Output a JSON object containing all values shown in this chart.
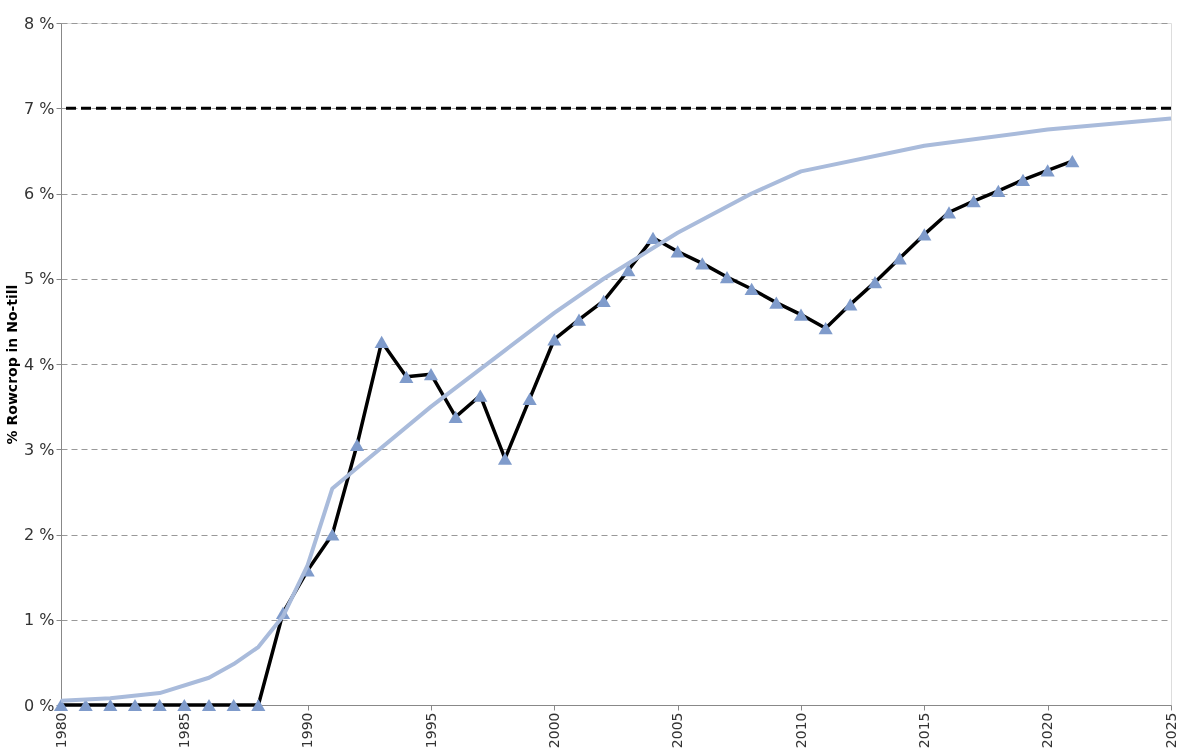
{
  "chart_data": {
    "type": "line",
    "ylabel": "% Rowcrop in No-till",
    "xlim": [
      1980,
      2025
    ],
    "xticks": [
      1980,
      1985,
      1990,
      1995,
      2000,
      2005,
      2010,
      2015,
      2020,
      2025
    ],
    "ylim": [
      0,
      8
    ],
    "yticks": [
      {
        "value": 0,
        "label": "0 %"
      },
      {
        "value": 1,
        "label": "1 %"
      },
      {
        "value": 2,
        "label": "2 %"
      },
      {
        "value": 3,
        "label": "3 %"
      },
      {
        "value": 4,
        "label": "4 %"
      },
      {
        "value": 5,
        "label": "5 %"
      },
      {
        "value": 6,
        "label": "6 %"
      },
      {
        "value": 7,
        "label": "7 %"
      },
      {
        "value": 8,
        "label": "8 %"
      }
    ],
    "grid": "y",
    "series": [
      {
        "color": "#7f9bcb",
        "marker": "triangle",
        "line_style": "solid",
        "x": [
          1980,
          1981,
          1982,
          1983,
          1984,
          1985,
          1986,
          1987,
          1988,
          1989,
          1990,
          1991,
          1992,
          1993,
          1994,
          1995,
          1996,
          1997,
          1998,
          1999,
          2000,
          2001,
          2002,
          2003,
          2004,
          2005,
          2006,
          2007,
          2008,
          2009,
          2010,
          2011,
          2012,
          2013,
          2014,
          2015,
          2016,
          2017,
          2018,
          2019,
          2020,
          2021
        ],
        "values": [
          0,
          0,
          0,
          0,
          0,
          0,
          0,
          0,
          0,
          1.08,
          1.58,
          2.0,
          3.05,
          4.26,
          3.85,
          3.88,
          3.38,
          3.63,
          2.89,
          3.59,
          4.29,
          4.52,
          4.74,
          5.1,
          5.48,
          5.32,
          5.18,
          5.02,
          4.88,
          4.72,
          4.58,
          4.42,
          4.7,
          4.96,
          5.24,
          5.52,
          5.78,
          5.91,
          6.03,
          6.16,
          6.27,
          6.38
        ]
      },
      {
        "color": "#a9bbdb",
        "marker": "none",
        "line_style": "solid",
        "x": [
          1980,
          1982,
          1984,
          1986,
          1987,
          1988,
          1989,
          1990,
          1991,
          1992,
          1995,
          1998,
          2000,
          2002,
          2005,
          2008,
          2010,
          2015,
          2020,
          2025
        ],
        "values": [
          0.05,
          0.08,
          0.14,
          0.32,
          0.48,
          0.68,
          1.04,
          1.64,
          2.54,
          2.78,
          3.5,
          4.16,
          4.6,
          5.0,
          5.54,
          6.0,
          6.26,
          6.56,
          6.75,
          6.88
        ]
      }
    ],
    "ref_lines": [
      {
        "axis": "y",
        "value": 7,
        "color": "#000000",
        "line_style": "dashed"
      }
    ]
  }
}
